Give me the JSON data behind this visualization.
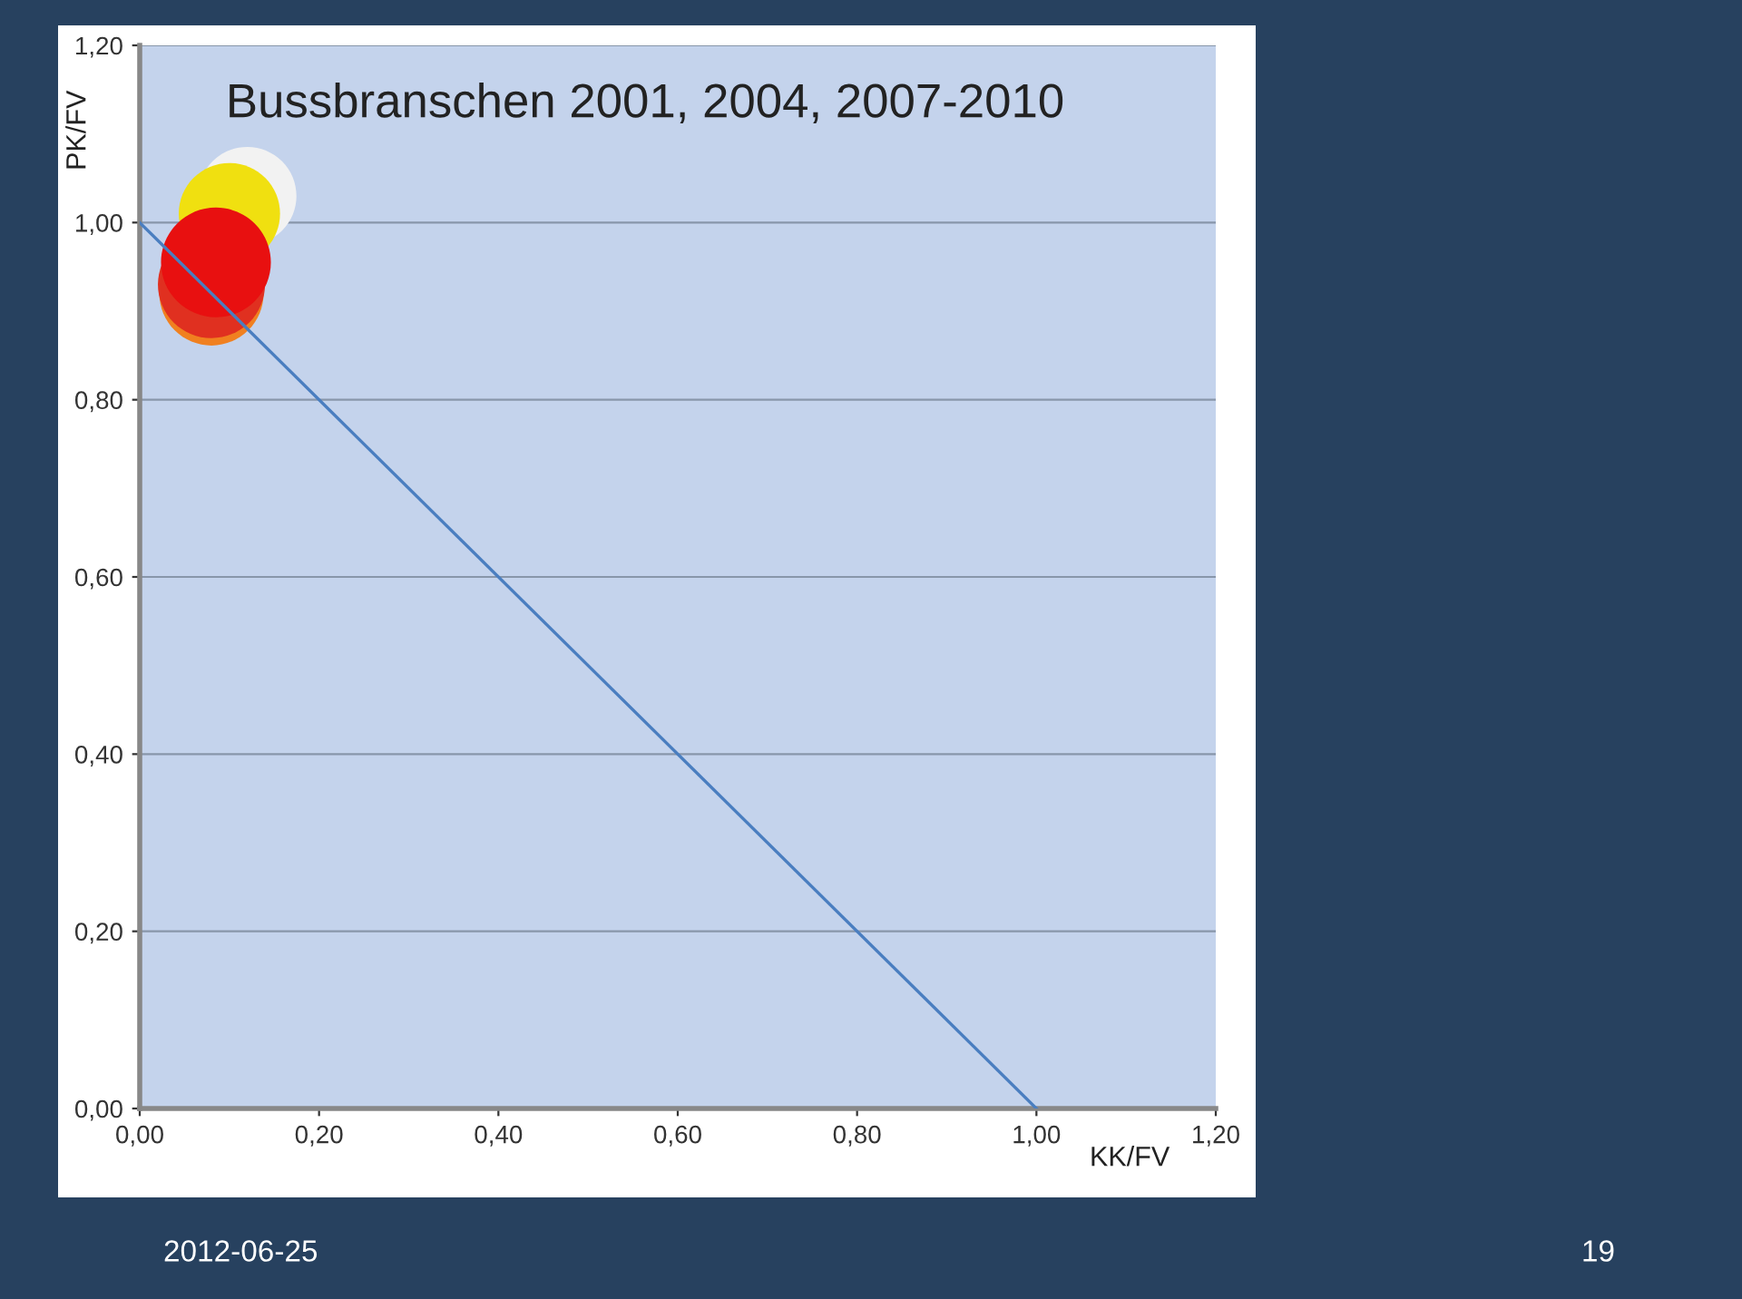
{
  "chart_data": {
    "type": "bubble",
    "title": "Bussbranschen 2001, 2004, 2007-2010",
    "xlabel": "KK/FV",
    "ylabel": "PK/FV",
    "series": [
      {
        "color": "#f2f2f2",
        "x": [
          0.12
        ],
        "values": [
          1.03
        ],
        "sizes": [
          0.8
        ]
      },
      {
        "color": "#f0e010",
        "x": [
          0.1
        ],
        "values": [
          1.01
        ],
        "sizes": [
          0.85
        ]
      },
      {
        "color": "#f08020",
        "x": [
          0.08
        ],
        "values": [
          0.92
        ],
        "sizes": [
          0.9
        ]
      },
      {
        "color": "#e03020",
        "x": [
          0.08
        ],
        "values": [
          0.93
        ],
        "sizes": [
          0.95
        ]
      },
      {
        "color": "#e81010",
        "x": [
          0.085
        ],
        "values": [
          0.955
        ],
        "sizes": [
          1
        ]
      },
      {
        "type": "line",
        "marker": "none",
        "color": "#4a7ec0",
        "x": [
          0,
          1
        ],
        "values": [
          1,
          0
        ]
      }
    ],
    "xlim": [
      0,
      1.2
    ],
    "ylim": [
      0,
      1.2
    ],
    "xticks": [
      {
        "value": 0,
        "label": "0,00"
      },
      {
        "value": 0.2,
        "label": "0,20"
      },
      {
        "value": 0.4,
        "label": "0,40"
      },
      {
        "value": 0.6,
        "label": "0,60"
      },
      {
        "value": 0.8,
        "label": "0,80"
      },
      {
        "value": 1,
        "label": "1,00"
      },
      {
        "value": 1.2,
        "label": "1,20"
      }
    ],
    "yticks": [
      {
        "value": 0,
        "label": "0,00"
      },
      {
        "value": 0.2,
        "label": "0,20"
      },
      {
        "value": 0.4,
        "label": "0,40"
      },
      {
        "value": 0.6,
        "label": "0,60"
      },
      {
        "value": 0.8,
        "label": "0,80"
      },
      {
        "value": 1,
        "label": "1,00"
      },
      {
        "value": 1.2,
        "label": "1,20"
      }
    ],
    "grid": "y",
    "marker": "circle",
    "annotations": [
      "2012-06-25",
      "19"
    ]
  }
}
